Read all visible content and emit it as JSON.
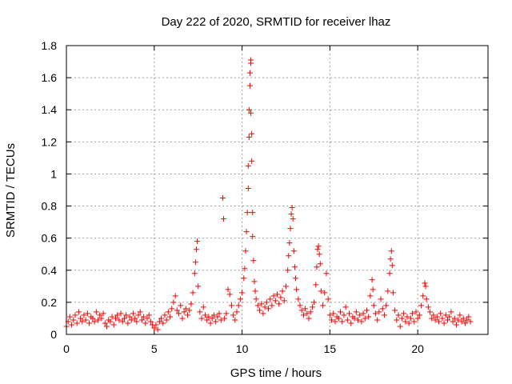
{
  "chart_data": {
    "type": "scatter",
    "title": "Day 222 of 2020, SRMTID for receiver lhaz",
    "xlabel": "GPS time / hours",
    "ylabel": "SRMTID / TECUs",
    "xlim": [
      0,
      24
    ],
    "ylim": [
      0,
      1.8
    ],
    "xticks": [
      0,
      5,
      10,
      15,
      20
    ],
    "xtick_labels": [
      "0",
      "5",
      "10",
      "15",
      "20"
    ],
    "yticks": [
      0,
      0.2,
      0.4,
      0.6,
      0.8,
      1.0,
      1.2,
      1.4,
      1.6,
      1.8
    ],
    "ytick_labels": [
      "0",
      "0.2",
      "0.4",
      "0.6",
      "0.8",
      "1",
      "1.2",
      "1.4",
      "1.6",
      "1.8"
    ],
    "grid": true,
    "marker": "plus",
    "series": [
      {
        "name": "SRMTID",
        "color": "#ff0000",
        "points": [
          [
            0.0,
            0.05
          ],
          [
            0.1,
            0.08
          ],
          [
            0.2,
            0.11
          ],
          [
            0.3,
            0.06
          ],
          [
            0.4,
            0.09
          ],
          [
            0.5,
            0.12
          ],
          [
            0.6,
            0.07
          ],
          [
            0.7,
            0.14
          ],
          [
            0.8,
            0.1
          ],
          [
            0.9,
            0.08
          ],
          [
            1.0,
            0.12
          ],
          [
            1.1,
            0.09
          ],
          [
            1.2,
            0.13
          ],
          [
            1.3,
            0.07
          ],
          [
            1.4,
            0.11
          ],
          [
            1.5,
            0.1
          ],
          [
            1.6,
            0.08
          ],
          [
            1.7,
            0.14
          ],
          [
            1.8,
            0.09
          ],
          [
            1.9,
            0.12
          ],
          [
            2.0,
            0.1
          ],
          [
            2.1,
            0.13
          ],
          [
            2.2,
            0.07
          ],
          [
            2.3,
            0.05
          ],
          [
            2.4,
            0.09
          ],
          [
            2.5,
            0.08
          ],
          [
            2.6,
            0.11
          ],
          [
            2.7,
            0.06
          ],
          [
            2.8,
            0.1
          ],
          [
            2.9,
            0.12
          ],
          [
            3.0,
            0.09
          ],
          [
            3.1,
            0.13
          ],
          [
            3.2,
            0.08
          ],
          [
            3.3,
            0.1
          ],
          [
            3.4,
            0.12
          ],
          [
            3.5,
            0.07
          ],
          [
            3.6,
            0.11
          ],
          [
            3.7,
            0.09
          ],
          [
            3.8,
            0.13
          ],
          [
            3.9,
            0.1
          ],
          [
            4.0,
            0.08
          ],
          [
            4.1,
            0.12
          ],
          [
            4.2,
            0.14
          ],
          [
            4.3,
            0.09
          ],
          [
            4.4,
            0.11
          ],
          [
            4.5,
            0.07
          ],
          [
            4.6,
            0.1
          ],
          [
            4.7,
            0.12
          ],
          [
            4.8,
            0.08
          ],
          [
            4.9,
            0.06
          ],
          [
            5.0,
            0.04
          ],
          [
            5.1,
            0.06
          ],
          [
            5.2,
            0.03
          ],
          [
            5.3,
            0.08
          ],
          [
            5.4,
            0.1
          ],
          [
            5.5,
            0.07
          ],
          [
            5.6,
            0.12
          ],
          [
            5.7,
            0.09
          ],
          [
            5.8,
            0.14
          ],
          [
            5.9,
            0.11
          ],
          [
            6.0,
            0.16
          ],
          [
            6.1,
            0.2
          ],
          [
            6.2,
            0.24
          ],
          [
            6.3,
            0.15
          ],
          [
            6.4,
            0.13
          ],
          [
            6.5,
            0.18
          ],
          [
            6.6,
            0.1
          ],
          [
            6.7,
            0.14
          ],
          [
            6.8,
            0.16
          ],
          [
            6.9,
            0.12
          ],
          [
            7.0,
            0.15
          ],
          [
            7.1,
            0.19
          ],
          [
            7.2,
            0.26
          ],
          [
            7.3,
            0.38
          ],
          [
            7.35,
            0.45
          ],
          [
            7.4,
            0.53
          ],
          [
            7.45,
            0.58
          ],
          [
            7.5,
            0.3
          ],
          [
            7.6,
            0.14
          ],
          [
            7.7,
            0.1
          ],
          [
            7.8,
            0.17
          ],
          [
            7.9,
            0.12
          ],
          [
            8.0,
            0.09
          ],
          [
            8.1,
            0.11
          ],
          [
            8.2,
            0.07
          ],
          [
            8.3,
            0.1
          ],
          [
            8.4,
            0.12
          ],
          [
            8.5,
            0.08
          ],
          [
            8.6,
            0.11
          ],
          [
            8.7,
            0.13
          ],
          [
            8.8,
            0.09
          ],
          [
            8.9,
            0.85
          ],
          [
            8.95,
            0.72
          ],
          [
            9.0,
            0.1
          ],
          [
            9.1,
            0.13
          ],
          [
            9.2,
            0.28
          ],
          [
            9.3,
            0.25
          ],
          [
            9.4,
            0.18
          ],
          [
            9.5,
            0.12
          ],
          [
            9.6,
            0.09
          ],
          [
            9.7,
            0.14
          ],
          [
            9.8,
            0.18
          ],
          [
            9.9,
            0.22
          ],
          [
            10.0,
            0.26
          ],
          [
            10.1,
            0.35
          ],
          [
            10.15,
            0.41
          ],
          [
            10.2,
            0.52
          ],
          [
            10.25,
            0.64
          ],
          [
            10.3,
            0.76
          ],
          [
            10.35,
            0.91
          ],
          [
            10.35,
            1.05
          ],
          [
            10.4,
            1.23
          ],
          [
            10.4,
            1.4
          ],
          [
            10.45,
            1.55
          ],
          [
            10.45,
            1.63
          ],
          [
            10.5,
            1.71
          ],
          [
            10.5,
            1.69
          ],
          [
            10.5,
            1.38
          ],
          [
            10.55,
            1.25
          ],
          [
            10.55,
            1.08
          ],
          [
            10.6,
            0.76
          ],
          [
            10.6,
            0.61
          ],
          [
            10.65,
            0.46
          ],
          [
            10.7,
            0.33
          ],
          [
            10.75,
            0.27
          ],
          [
            10.8,
            0.22
          ],
          [
            10.9,
            0.18
          ],
          [
            11.0,
            0.15
          ],
          [
            11.1,
            0.19
          ],
          [
            11.2,
            0.13
          ],
          [
            11.3,
            0.17
          ],
          [
            11.4,
            0.2
          ],
          [
            11.5,
            0.16
          ],
          [
            11.6,
            0.22
          ],
          [
            11.7,
            0.18
          ],
          [
            11.8,
            0.24
          ],
          [
            11.9,
            0.21
          ],
          [
            12.0,
            0.25
          ],
          [
            12.1,
            0.19
          ],
          [
            12.2,
            0.23
          ],
          [
            12.3,
            0.27
          ],
          [
            12.4,
            0.21
          ],
          [
            12.5,
            0.3
          ],
          [
            12.6,
            0.4
          ],
          [
            12.65,
            0.49
          ],
          [
            12.7,
            0.57
          ],
          [
            12.75,
            0.66
          ],
          [
            12.8,
            0.75
          ],
          [
            12.85,
            0.79
          ],
          [
            12.9,
            0.72
          ],
          [
            12.95,
            0.52
          ],
          [
            13.0,
            0.42
          ],
          [
            13.05,
            0.35
          ],
          [
            13.1,
            0.28
          ],
          [
            13.2,
            0.22
          ],
          [
            13.3,
            0.18
          ],
          [
            13.4,
            0.15
          ],
          [
            13.5,
            0.12
          ],
          [
            13.6,
            0.16
          ],
          [
            13.7,
            0.13
          ],
          [
            13.8,
            0.1
          ],
          [
            13.9,
            0.14
          ],
          [
            14.0,
            0.17
          ],
          [
            14.1,
            0.2
          ],
          [
            14.2,
            0.31
          ],
          [
            14.25,
            0.42
          ],
          [
            14.3,
            0.53
          ],
          [
            14.35,
            0.55
          ],
          [
            14.4,
            0.5
          ],
          [
            14.45,
            0.44
          ],
          [
            14.5,
            0.27
          ],
          [
            14.6,
            0.18
          ],
          [
            14.7,
            0.26
          ],
          [
            14.8,
            0.38
          ],
          [
            14.9,
            0.22
          ],
          [
            15.0,
            0.12
          ],
          [
            15.1,
            0.09
          ],
          [
            15.2,
            0.13
          ],
          [
            15.3,
            0.08
          ],
          [
            15.4,
            0.11
          ],
          [
            15.5,
            0.1
          ],
          [
            15.6,
            0.14
          ],
          [
            15.7,
            0.08
          ],
          [
            15.8,
            0.12
          ],
          [
            15.9,
            0.17
          ],
          [
            16.0,
            0.09
          ],
          [
            16.1,
            0.13
          ],
          [
            16.2,
            0.07
          ],
          [
            16.3,
            0.11
          ],
          [
            16.4,
            0.1
          ],
          [
            16.5,
            0.14
          ],
          [
            16.6,
            0.09
          ],
          [
            16.7,
            0.12
          ],
          [
            16.8,
            0.08
          ],
          [
            16.9,
            0.13
          ],
          [
            17.0,
            0.1
          ],
          [
            17.1,
            0.15
          ],
          [
            17.2,
            0.11
          ],
          [
            17.3,
            0.24
          ],
          [
            17.4,
            0.34
          ],
          [
            17.45,
            0.28
          ],
          [
            17.5,
            0.18
          ],
          [
            17.6,
            0.13
          ],
          [
            17.7,
            0.09
          ],
          [
            17.8,
            0.14
          ],
          [
            17.9,
            0.22
          ],
          [
            18.0,
            0.16
          ],
          [
            18.1,
            0.12
          ],
          [
            18.2,
            0.18
          ],
          [
            18.3,
            0.27
          ],
          [
            18.4,
            0.38
          ],
          [
            18.45,
            0.47
          ],
          [
            18.5,
            0.52
          ],
          [
            18.55,
            0.43
          ],
          [
            18.6,
            0.26
          ],
          [
            18.7,
            0.15
          ],
          [
            18.8,
            0.09
          ],
          [
            18.9,
            0.12
          ],
          [
            19.0,
            0.05
          ],
          [
            19.1,
            0.1
          ],
          [
            19.2,
            0.13
          ],
          [
            19.3,
            0.08
          ],
          [
            19.4,
            0.11
          ],
          [
            19.5,
            0.07
          ],
          [
            19.6,
            0.1
          ],
          [
            19.7,
            0.13
          ],
          [
            19.8,
            0.08
          ],
          [
            19.9,
            0.14
          ],
          [
            20.0,
            0.1
          ],
          [
            20.1,
            0.12
          ],
          [
            20.2,
            0.18
          ],
          [
            20.3,
            0.24
          ],
          [
            20.4,
            0.32
          ],
          [
            20.45,
            0.3
          ],
          [
            20.5,
            0.22
          ],
          [
            20.6,
            0.17
          ],
          [
            20.7,
            0.14
          ],
          [
            20.8,
            0.1
          ],
          [
            20.9,
            0.12
          ],
          [
            21.0,
            0.09
          ],
          [
            21.1,
            0.11
          ],
          [
            21.2,
            0.08
          ],
          [
            21.3,
            0.13
          ],
          [
            21.4,
            0.1
          ],
          [
            21.5,
            0.07
          ],
          [
            21.6,
            0.12
          ],
          [
            21.7,
            0.09
          ],
          [
            21.8,
            0.11
          ],
          [
            21.9,
            0.14
          ],
          [
            22.0,
            0.08
          ],
          [
            22.1,
            0.1
          ],
          [
            22.2,
            0.06
          ],
          [
            22.3,
            0.09
          ],
          [
            22.4,
            0.12
          ],
          [
            22.5,
            0.08
          ],
          [
            22.6,
            0.1
          ],
          [
            22.7,
            0.07
          ],
          [
            22.8,
            0.09
          ],
          [
            22.9,
            0.11
          ],
          [
            23.0,
            0.08
          ]
        ]
      }
    ]
  }
}
